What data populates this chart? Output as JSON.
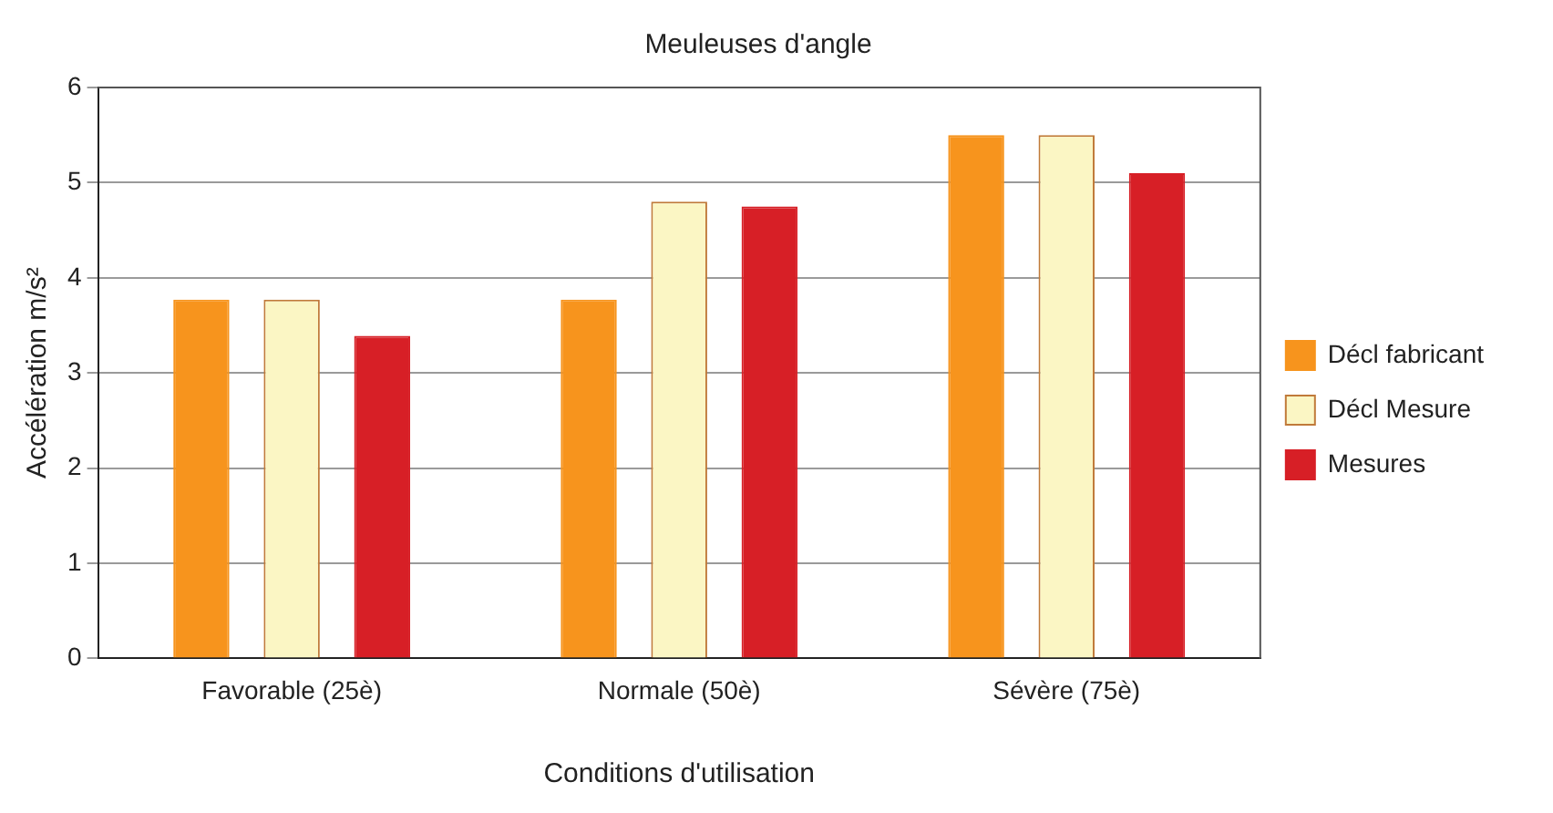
{
  "chart_data": {
    "type": "bar",
    "title": "Meuleuses d'angle",
    "xlabel": "Conditions d'utilisation",
    "ylabel": "Accélération m/s²",
    "categories": [
      "Favorable (25è)",
      "Normale (50è)",
      "Sévère (75è)"
    ],
    "series": [
      {
        "name": "Décl fabricant",
        "color": "#f7941d",
        "values": [
          3.77,
          3.77,
          5.5
        ]
      },
      {
        "name": "Décl Mesure",
        "color": "#fbf6c4",
        "values": [
          3.77,
          4.8,
          5.5
        ]
      },
      {
        "name": "Mesures",
        "color": "#d71f26",
        "values": [
          3.39,
          4.75,
          5.1
        ]
      }
    ],
    "ylim": [
      0,
      6
    ],
    "yticks": [
      0,
      1,
      2,
      3,
      4,
      5,
      6
    ],
    "grid": "y",
    "legend": "right"
  }
}
